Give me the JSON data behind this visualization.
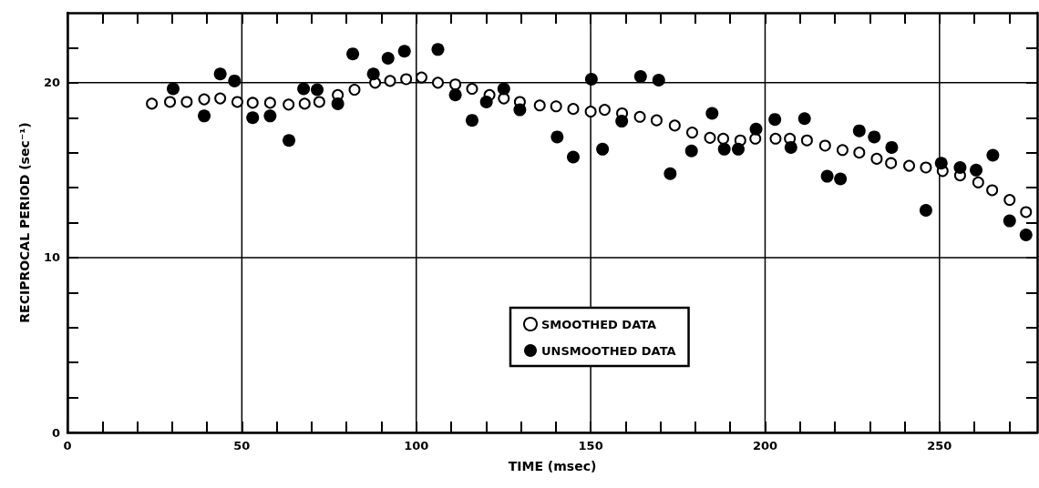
{
  "chart_data": {
    "type": "scatter",
    "xlabel": "TIME (msec)",
    "ylabel": "RECIPROCAL PERIOD (sec⁻¹)",
    "xlim": [
      0,
      278
    ],
    "ylim": [
      0,
      24
    ],
    "xticks": [
      0,
      {
        "value": 10,
        "label": null
      },
      {
        "value": 20,
        "label": null
      },
      {
        "value": 30,
        "label": null
      },
      {
        "value": 40,
        "label": null
      },
      50,
      {
        "value": 60,
        "label": null
      },
      {
        "value": 70,
        "label": null
      },
      {
        "value": 80,
        "label": null
      },
      {
        "value": 90,
        "label": null
      },
      100,
      {
        "value": 110,
        "label": null
      },
      {
        "value": 120,
        "label": null
      },
      {
        "value": 130,
        "label": null
      },
      {
        "value": 140,
        "label": null
      },
      150,
      {
        "value": 160,
        "label": null
      },
      {
        "value": 170,
        "label": null
      },
      {
        "value": 180,
        "label": null
      },
      {
        "value": 190,
        "label": null
      },
      200,
      {
        "value": 210,
        "label": null
      },
      {
        "value": 220,
        "label": null
      },
      {
        "value": 230,
        "label": null
      },
      {
        "value": 240,
        "label": null
      },
      250,
      {
        "value": 260,
        "label": null
      },
      {
        "value": 270,
        "label": null
      }
    ],
    "yticks": [
      0,
      {
        "value": 2,
        "label": null
      },
      {
        "value": 4,
        "label": null
      },
      {
        "value": 6,
        "label": null
      },
      {
        "value": 8,
        "label": null
      },
      10,
      {
        "value": 12,
        "label": null
      },
      {
        "value": 14,
        "label": null
      },
      {
        "value": 16,
        "label": null
      },
      {
        "value": 18,
        "label": null
      },
      20,
      {
        "value": 22,
        "label": null
      }
    ],
    "grid": true,
    "legend": "bottom",
    "marker": "circle",
    "series": [
      {
        "name": "SMOOTHED DATA",
        "color": "#000000",
        "x": [
          24.2,
          29.4,
          34.2,
          39.2,
          43.8,
          48.7,
          53.1,
          58.1,
          63.4,
          68,
          72.2,
          77.5,
          82.3,
          88.2,
          92.5,
          97.1,
          101.5,
          106.2,
          111.2,
          116,
          121,
          125.1,
          129.7,
          135.4,
          140.1,
          145,
          150,
          154,
          159,
          164.1,
          168.9,
          174.1,
          179.1,
          184.2,
          188,
          192.9,
          197.2,
          203,
          207.1,
          212,
          217.2,
          222.2,
          227,
          232,
          236.1,
          241.3,
          246.1,
          250.9,
          255.9,
          261.1,
          265.1,
          270.1,
          274.8
        ],
        "values": [
          18.8,
          18.9,
          18.9,
          19.05,
          19.1,
          18.9,
          18.85,
          18.85,
          18.75,
          18.8,
          18.9,
          19.3,
          19.6,
          20.0,
          20.1,
          20.2,
          20.3,
          20.0,
          19.9,
          19.65,
          19.3,
          19.1,
          18.9,
          18.7,
          18.65,
          18.5,
          18.35,
          18.45,
          18.25,
          18.05,
          17.85,
          17.55,
          17.15,
          16.85,
          16.8,
          16.7,
          16.8,
          16.8,
          16.8,
          16.7,
          16.4,
          16.15,
          16.0,
          15.65,
          15.4,
          15.25,
          15.15,
          14.95,
          14.7,
          14.3,
          13.85,
          13.3,
          12.6
        ]
      },
      {
        "name": "UNSMOOTHED DATA",
        "color": "#000000",
        "x": [
          30.3,
          39.2,
          43.8,
          47.9,
          53.1,
          58.1,
          63.5,
          67.7,
          71.6,
          77.5,
          81.8,
          87.7,
          91.9,
          96.6,
          106.2,
          111.2,
          116,
          120.1,
          125.1,
          129.7,
          140.4,
          145,
          150.2,
          153.4,
          158.9,
          164.3,
          169.5,
          172.8,
          178.9,
          184.8,
          188.3,
          192.3,
          197.4,
          202.8,
          207.4,
          211.3,
          217.8,
          221.6,
          227,
          231.3,
          236.3,
          246.1,
          250.5,
          255.9,
          260.5,
          265.3,
          270.1,
          274.8
        ],
        "values": [
          19.65,
          18.1,
          20.5,
          20.1,
          18.0,
          18.1,
          16.7,
          19.65,
          19.6,
          18.8,
          21.65,
          20.5,
          21.4,
          21.8,
          21.9,
          19.3,
          17.85,
          18.9,
          19.65,
          18.45,
          16.9,
          15.75,
          20.2,
          16.2,
          17.8,
          20.35,
          20.15,
          14.8,
          16.1,
          18.25,
          16.2,
          16.2,
          17.35,
          17.9,
          16.3,
          17.95,
          14.65,
          14.5,
          17.25,
          16.9,
          16.3,
          12.7,
          15.4,
          15.15,
          15.0,
          15.85,
          12.1,
          11.3
        ]
      }
    ]
  }
}
